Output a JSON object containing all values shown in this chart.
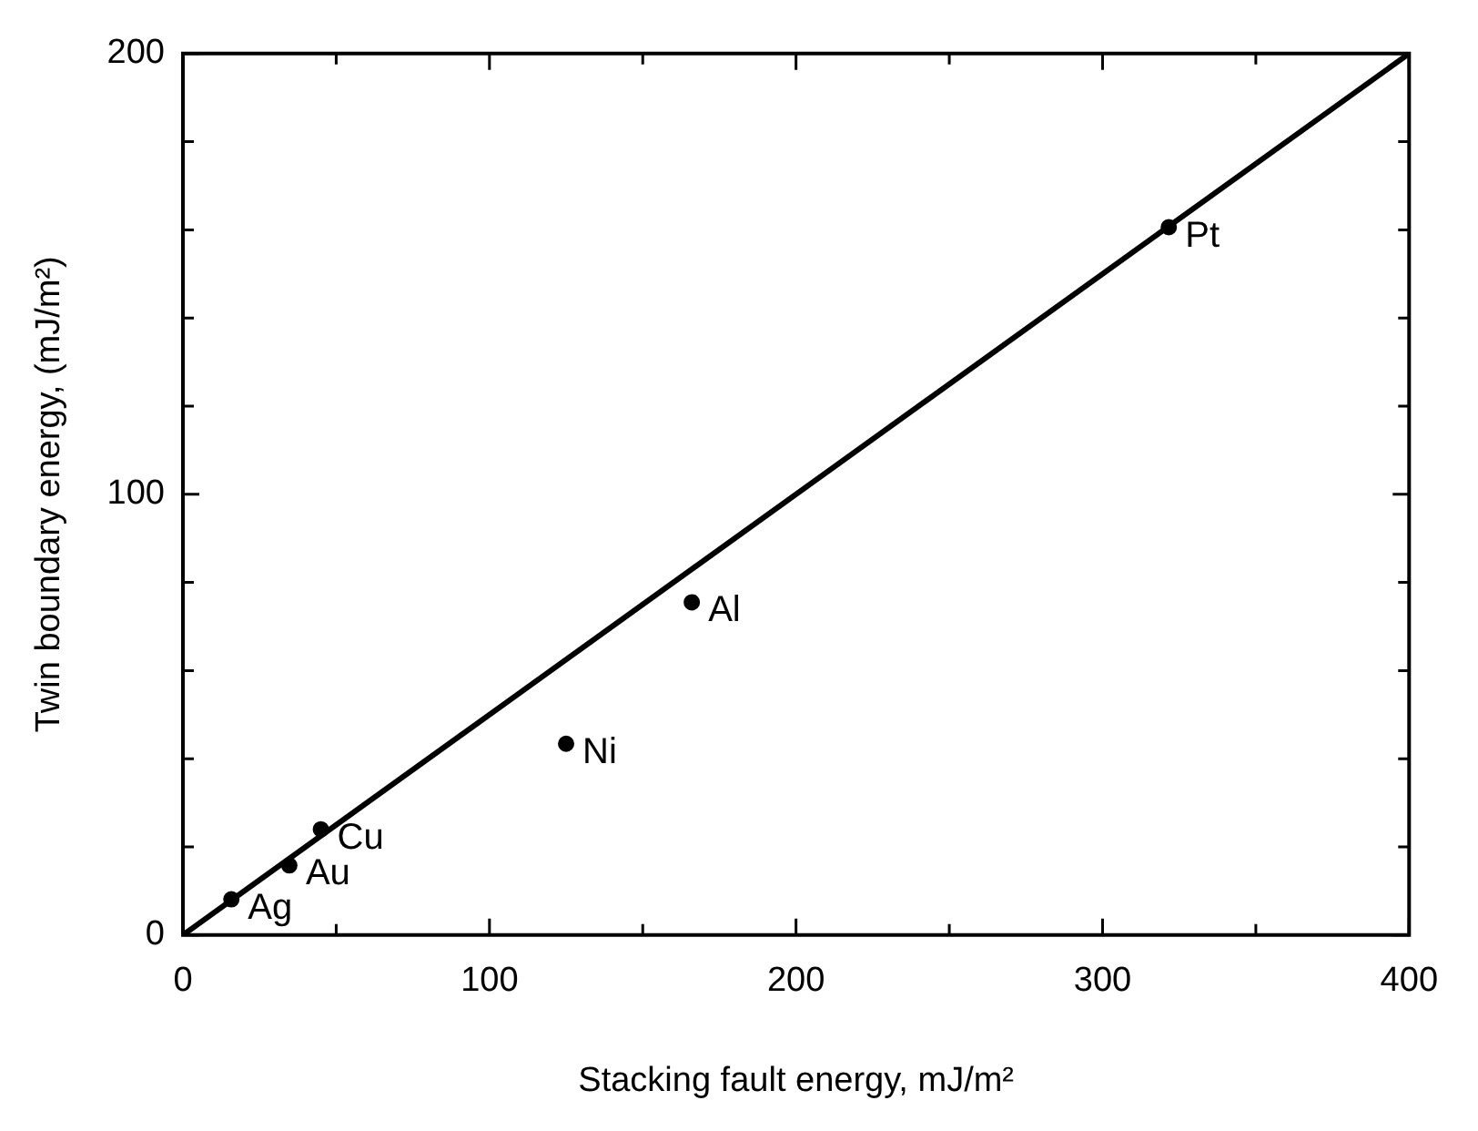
{
  "chart_data": {
    "type": "scatter",
    "xlabel": "Stacking fault energy, mJ/m²",
    "ylabel": "Twin boundary energy, (mJ/m²)",
    "xlim": [
      0,
      400
    ],
    "ylim": [
      0,
      200
    ],
    "xticks": [
      0,
      {
        "value": 50,
        "label": null
      },
      100,
      {
        "value": 150,
        "label": null
      },
      200,
      {
        "value": 250,
        "label": null
      },
      300,
      {
        "value": 350,
        "label": null
      },
      400
    ],
    "yticks": [
      0,
      {
        "value": 20,
        "label": null
      },
      {
        "value": 40,
        "label": null
      },
      {
        "value": 60,
        "label": null
      },
      {
        "value": 80,
        "label": null
      },
      100,
      {
        "value": 120,
        "label": null
      },
      {
        "value": 140,
        "label": null
      },
      {
        "value": 160,
        "label": null
      },
      {
        "value": 180,
        "label": null
      },
      200
    ],
    "legend": false,
    "series": [
      {
        "marker": "circle",
        "color": "#000000",
        "x": [
          15.8,
          34.7,
          45,
          125,
          166,
          321.6
        ],
        "values": [
          8.1,
          15.8,
          24,
          43.4,
          75.5,
          160.6
        ]
      },
      {
        "type": "line",
        "marker": "none",
        "color": "#000000",
        "x": [
          0,
          400
        ],
        "values": [
          0,
          200
        ]
      }
    ],
    "annotations": [
      {
        "text": "Ag",
        "x": 15.8,
        "y": 8.1
      },
      {
        "text": "Au",
        "x": 34.7,
        "y": 15.8
      },
      {
        "text": "Cu",
        "x": 45,
        "y": 24
      },
      {
        "text": "Ni",
        "x": 125,
        "y": 43.4
      },
      {
        "text": "Al",
        "x": 166,
        "y": 75.5
      },
      {
        "text": "Pt",
        "x": 321.6,
        "y": 160.6
      }
    ]
  }
}
